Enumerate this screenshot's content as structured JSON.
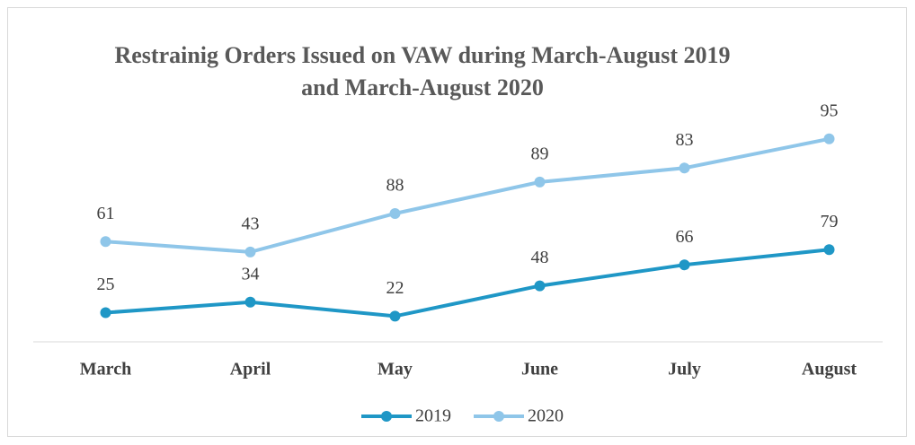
{
  "chart_data": {
    "type": "line",
    "stacked": true,
    "title": "Restrainig Orders Issued on VAW during March-August 2019 and March-August 2020",
    "categories": [
      "March",
      "April",
      "May",
      "June",
      "July",
      "August"
    ],
    "series": [
      {
        "name": "2019",
        "color": "#1f97c6",
        "values": [
          25,
          34,
          22,
          48,
          66,
          79
        ]
      },
      {
        "name": "2020",
        "color": "#8fc6e9",
        "values": [
          61,
          43,
          88,
          89,
          83,
          95
        ]
      }
    ],
    "ylim": [
      0,
      200
    ],
    "grid": false,
    "legend": "bottom"
  }
}
